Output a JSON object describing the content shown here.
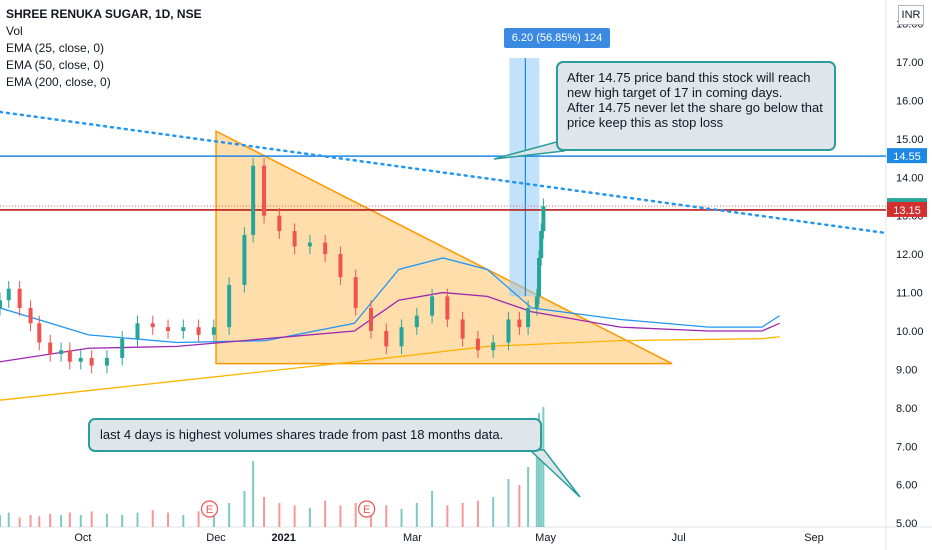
{
  "legend": {
    "title": "SHREE RENUKA SUGAR, 1D, NSE",
    "items": [
      "Vol",
      "EMA (25, close, 0)",
      "EMA (50, close, 0)",
      "EMA (200, close, 0)"
    ]
  },
  "currency": "INR",
  "measure_label": "6.20 (56.85%) 124",
  "annotations": {
    "target_note": "After 14.75 price band this stock will reach new high target of 17 in coming days.\nAfter 14.75 never let the share go below that price keep this as stop loss",
    "volume_note": "last 4 days is highest volumes shares trade from past 18 months data."
  },
  "event_markers": [
    "E",
    "E"
  ],
  "colors": {
    "up": "#26a69a",
    "down": "#ef5350",
    "ema25": "#2196f3",
    "ema50": "#9c27b0",
    "ema200": "#ffb300",
    "triangle_stroke": "#ff9800",
    "triangle_fill": "#ffcc80",
    "resistance_line": "#1e88e5",
    "price_line": "#b71c1c",
    "trend_line": "#2196f3",
    "measure_fill": "#90caf9",
    "note_border": "#2a9d9d"
  },
  "chart_data": {
    "type": "candlestick",
    "y_axis": {
      "range": [
        4.9,
        18.3
      ],
      "ticks": [
        "18.00",
        "17.00",
        "16.00",
        "15.00",
        "14.00",
        "13.00",
        "12.00",
        "11.00",
        "10.00",
        "9.00",
        "8.00",
        "7.00",
        "6.00",
        "5.00"
      ],
      "tick_values": [
        18,
        17,
        16,
        15,
        14,
        13,
        12,
        11,
        10,
        9,
        8,
        7,
        6,
        5
      ]
    },
    "x_axis": {
      "range": [
        "2020-08-24",
        "2021-10-04"
      ],
      "ticks": [
        "Oct",
        "Dec",
        "2021",
        "Mar",
        "May",
        "Jul",
        "Sep"
      ],
      "tick_dates": [
        "2020-10-01",
        "2020-12-01",
        "2021-01-01",
        "2021-03-01",
        "2021-05-01",
        "2021-07-01",
        "2021-09-01"
      ]
    },
    "price_labels": [
      {
        "text": "14.55",
        "value": 14.55,
        "color": "#1e88e5"
      },
      {
        "text": "13.25",
        "value": 13.25,
        "color": "#26a69a"
      },
      {
        "text": "13.15",
        "value": 13.15,
        "color": "#d32f2f"
      }
    ],
    "candles_close": [
      {
        "date": "2020-08-24",
        "close": 10.8
      },
      {
        "date": "2020-08-28",
        "close": 11.1
      },
      {
        "date": "2020-09-02",
        "close": 10.6
      },
      {
        "date": "2020-09-07",
        "close": 10.2
      },
      {
        "date": "2020-09-11",
        "close": 9.7
      },
      {
        "date": "2020-09-16",
        "close": 9.4
      },
      {
        "date": "2020-09-21",
        "close": 9.5
      },
      {
        "date": "2020-09-25",
        "close": 9.2
      },
      {
        "date": "2020-09-30",
        "close": 9.3
      },
      {
        "date": "2020-10-05",
        "close": 9.1
      },
      {
        "date": "2020-10-12",
        "close": 9.3
      },
      {
        "date": "2020-10-19",
        "close": 9.8
      },
      {
        "date": "2020-10-26",
        "close": 10.2
      },
      {
        "date": "2020-11-02",
        "close": 10.1
      },
      {
        "date": "2020-11-09",
        "close": 10.0
      },
      {
        "date": "2020-11-16",
        "close": 10.1
      },
      {
        "date": "2020-11-23",
        "close": 9.9
      },
      {
        "date": "2020-11-30",
        "close": 10.1
      },
      {
        "date": "2020-12-07",
        "close": 11.2
      },
      {
        "date": "2020-12-14",
        "close": 12.5
      },
      {
        "date": "2020-12-18",
        "close": 14.3
      },
      {
        "date": "2020-12-23",
        "close": 13.0
      },
      {
        "date": "2020-12-30",
        "close": 12.6
      },
      {
        "date": "2021-01-06",
        "close": 12.2
      },
      {
        "date": "2021-01-13",
        "close": 12.3
      },
      {
        "date": "2021-01-20",
        "close": 12.0
      },
      {
        "date": "2021-01-27",
        "close": 11.4
      },
      {
        "date": "2021-02-03",
        "close": 10.6
      },
      {
        "date": "2021-02-10",
        "close": 10.0
      },
      {
        "date": "2021-02-17",
        "close": 9.6
      },
      {
        "date": "2021-02-24",
        "close": 10.1
      },
      {
        "date": "2021-03-03",
        "close": 10.4
      },
      {
        "date": "2021-03-10",
        "close": 10.9
      },
      {
        "date": "2021-03-17",
        "close": 10.3
      },
      {
        "date": "2021-03-24",
        "close": 9.8
      },
      {
        "date": "2021-03-31",
        "close": 9.5
      },
      {
        "date": "2021-04-07",
        "close": 9.7
      },
      {
        "date": "2021-04-14",
        "close": 10.3
      },
      {
        "date": "2021-04-19",
        "close": 10.1
      },
      {
        "date": "2021-04-23",
        "close": 10.6
      },
      {
        "date": "2021-04-27",
        "close": 10.9
      },
      {
        "date": "2021-04-28",
        "close": 11.9
      },
      {
        "date": "2021-04-29",
        "close": 12.6
      },
      {
        "date": "2021-04-30",
        "close": 13.25
      }
    ],
    "ema_series": [
      {
        "name": "EMA (25, close, 0)",
        "values": [
          [
            0,
            10.6
          ],
          [
            0.1,
            9.9
          ],
          [
            0.2,
            9.7
          ],
          [
            0.3,
            9.75
          ],
          [
            0.4,
            10.2
          ],
          [
            0.45,
            11.6
          ],
          [
            0.5,
            11.9
          ],
          [
            0.55,
            11.6
          ],
          [
            0.6,
            10.6
          ],
          [
            0.7,
            10.3
          ],
          [
            0.8,
            10.1
          ],
          [
            0.86,
            10.1
          ],
          [
            0.88,
            10.4
          ]
        ]
      },
      {
        "name": "EMA (50, close, 0)",
        "values": [
          [
            0,
            9.2
          ],
          [
            0.1,
            9.55
          ],
          [
            0.2,
            9.6
          ],
          [
            0.3,
            9.8
          ],
          [
            0.4,
            10.0
          ],
          [
            0.45,
            10.8
          ],
          [
            0.5,
            11.0
          ],
          [
            0.55,
            10.9
          ],
          [
            0.6,
            10.5
          ],
          [
            0.7,
            10.1
          ],
          [
            0.8,
            10.0
          ],
          [
            0.86,
            10.0
          ],
          [
            0.88,
            10.2
          ]
        ]
      },
      {
        "name": "EMA (200, close, 0)",
        "values": [
          [
            0,
            8.2
          ],
          [
            0.2,
            8.7
          ],
          [
            0.4,
            9.2
          ],
          [
            0.55,
            9.6
          ],
          [
            0.7,
            9.75
          ],
          [
            0.86,
            9.8
          ],
          [
            0.88,
            9.85
          ]
        ]
      }
    ],
    "trendline": {
      "points": [
        [
          "2020-08-24",
          15.7
        ],
        [
          "2021-10-04",
          12.55
        ]
      ]
    },
    "triangle": {
      "points": [
        [
          "2020-12-01",
          15.2
        ],
        [
          "2021-06-28",
          9.15
        ],
        [
          "2020-12-01",
          9.15
        ]
      ]
    },
    "resistance": 14.55,
    "measure": {
      "from_value": 10.9,
      "to_value": 17.1
    },
    "volume": {
      "scale_note": "overlay",
      "bars": [
        0.1,
        0.12,
        0.08,
        0.1,
        0.09,
        0.11,
        0.1,
        0.12,
        0.1,
        0.13,
        0.11,
        0.1,
        0.12,
        0.14,
        0.12,
        0.1,
        0.13,
        0.12,
        0.2,
        0.3,
        0.55,
        0.25,
        0.2,
        0.18,
        0.16,
        0.22,
        0.18,
        0.2,
        0.16,
        0.18,
        0.15,
        0.2,
        0.3,
        0.18,
        0.2,
        0.22,
        0.25,
        0.4,
        0.35,
        0.5,
        0.6,
        0.95,
        0.85,
        1.0
      ]
    }
  }
}
